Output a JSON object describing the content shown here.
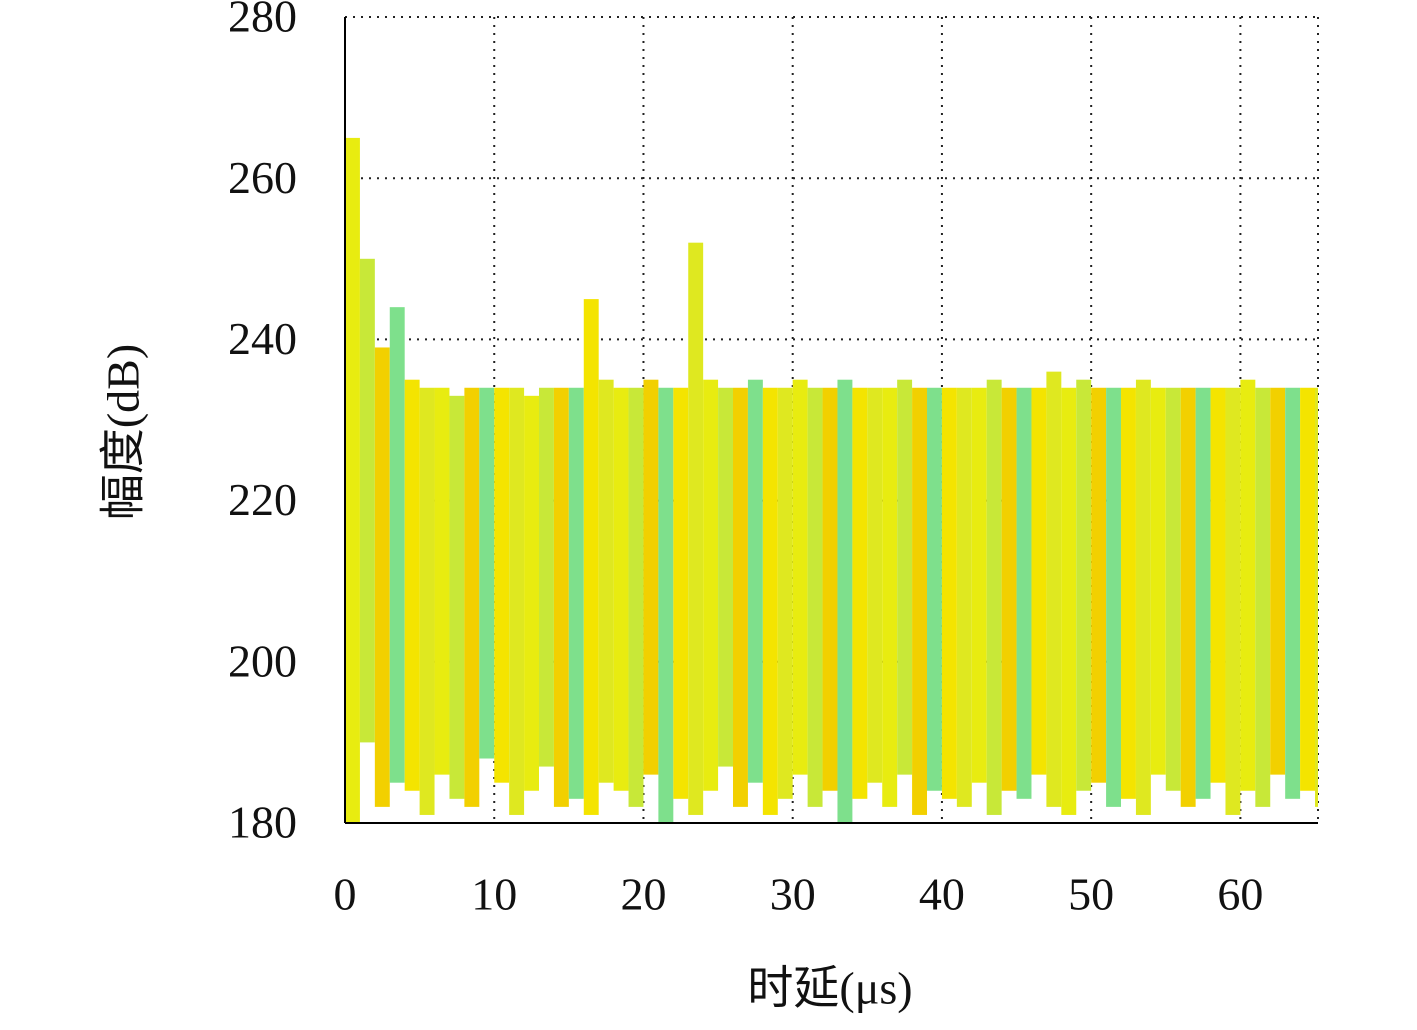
{
  "chart_data": {
    "type": "range",
    "xlabel": "时延(μs)",
    "ylabel": "幅度(dB)",
    "x": [
      0,
      1,
      2,
      3,
      4,
      5,
      6,
      7,
      8,
      9,
      10,
      11,
      12,
      13,
      14,
      15,
      16,
      17,
      18,
      19,
      20,
      21,
      22,
      23,
      24,
      25,
      26,
      27,
      28,
      29,
      30,
      31,
      32,
      33,
      34,
      35,
      36,
      37,
      38,
      39,
      40,
      41,
      42,
      43,
      44,
      45,
      46,
      47,
      48,
      49,
      50,
      51,
      52,
      53,
      54,
      55,
      56,
      57,
      58,
      59,
      60,
      61,
      62,
      63,
      64,
      65
    ],
    "high": [
      265,
      250,
      239,
      244,
      235,
      234,
      234,
      233,
      234,
      234,
      234,
      234,
      233,
      234,
      234,
      234,
      245,
      235,
      234,
      234,
      235,
      234,
      234,
      252,
      235,
      234,
      234,
      235,
      234,
      234,
      235,
      234,
      234,
      235,
      234,
      234,
      234,
      235,
      234,
      234,
      234,
      234,
      234,
      235,
      234,
      234,
      234,
      236,
      234,
      235,
      234,
      234,
      234,
      235,
      234,
      234,
      234,
      234,
      234,
      234,
      235,
      234,
      234,
      234,
      234,
      234
    ],
    "low": [
      180,
      190,
      182,
      185,
      184,
      181,
      186,
      183,
      182,
      188,
      185,
      181,
      184,
      187,
      182,
      183,
      181,
      185,
      184,
      182,
      186,
      180,
      183,
      181,
      184,
      187,
      182,
      185,
      181,
      183,
      186,
      182,
      184,
      180,
      183,
      185,
      182,
      186,
      181,
      184,
      183,
      182,
      185,
      181,
      184,
      183,
      186,
      182,
      181,
      184,
      185,
      182,
      183,
      181,
      186,
      184,
      182,
      183,
      185,
      181,
      184,
      182,
      186,
      183,
      184,
      182
    ],
    "colors": [
      "#e8ec10",
      "#c8e838",
      "#f2d000",
      "#7ee08c",
      "#f4e400",
      "#dfe820"
    ],
    "xlim": [
      0,
      65.2
    ],
    "ylim": [
      180,
      280
    ],
    "xticks": [
      0,
      10,
      20,
      30,
      40,
      50,
      60
    ],
    "yticks": [
      180,
      200,
      220,
      240,
      260,
      280
    ],
    "grid": true
  }
}
